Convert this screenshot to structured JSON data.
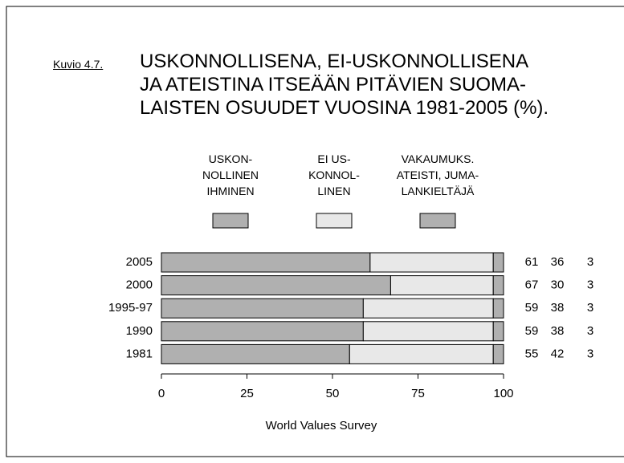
{
  "chart_data": {
    "type": "stacked_barh",
    "title_label": "Kuvio 4.7.",
    "title": "USKONNOLLISENA, EI-USKONNOLLISENA\nJA ATEISTINA ITSEÄÄN PITÄVIEN SUOMA-\nLAISTEN OSUUDET VUOSINA 1981-2005 (%).",
    "categories": [
      "2005",
      "2000",
      "1995-97",
      "1990",
      "1981"
    ],
    "series": [
      {
        "name": "USKON-\nNOLLINEN\nIHMINEN",
        "color": "#b0b0b0",
        "values": [
          61,
          67,
          59,
          59,
          55
        ]
      },
      {
        "name": "EI US-\nKONNOL-\nLINEN",
        "color": "#e8e8e8",
        "values": [
          36,
          30,
          38,
          38,
          42
        ]
      },
      {
        "name": "VAKAUMUKS.\nATEISTI, JUMA-\nLANKIELTÄJÄ",
        "color": "#b0b0b0",
        "values": [
          3,
          3,
          3,
          3,
          3
        ]
      }
    ],
    "xlim": [
      0,
      100
    ],
    "xticks": [
      0,
      25,
      50,
      75,
      100
    ],
    "source": "World Values Survey"
  }
}
